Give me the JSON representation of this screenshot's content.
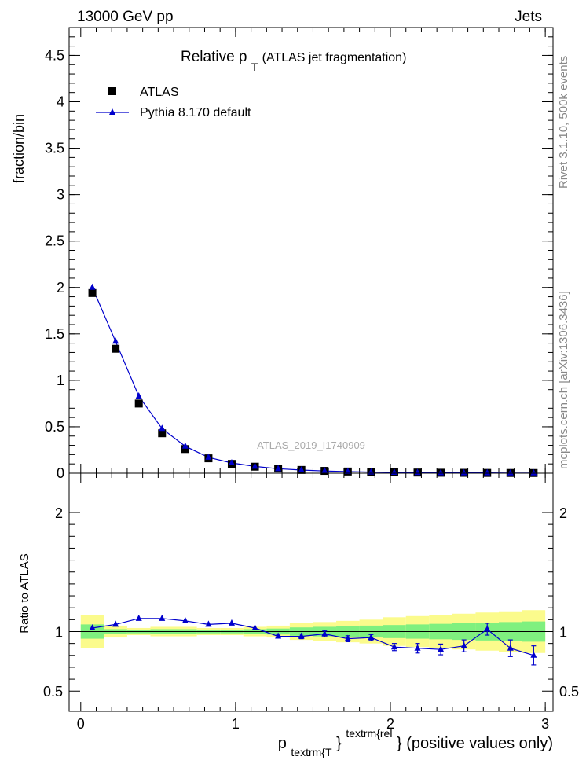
{
  "header": {
    "energy_label": "13000 GeV pp",
    "process_label": "Jets"
  },
  "side_labels": {
    "rivet": "Rivet 3.1.10,  500k events",
    "mcplots": "mcplots.cern.ch [arXiv:1306.3436]"
  },
  "colors": {
    "mc": "#0000cc",
    "green_band": "#7ff07f",
    "yellow_band": "#fbfb8c",
    "data": "#000000",
    "ref_line": "#000000"
  },
  "chart_data": [
    {
      "type": "scatter",
      "panel": "main",
      "title_main": "Relative p",
      "title_sub": "T",
      "title_rest": " (ATLAS jet fragmentation)",
      "analysis_label": "ATLAS_2019_I1740909",
      "ylabel": "fraction/bin",
      "xlim": [
        -0.075,
        3.05
      ],
      "ylim": [
        0,
        4.8
      ],
      "yticks": [
        0,
        0.5,
        1,
        1.5,
        2,
        2.5,
        3,
        3.5,
        4,
        4.5
      ],
      "ytick_labels": [
        "0",
        "0.5",
        "1",
        "1.5",
        "2",
        "2.5",
        "3",
        "3.5",
        "4",
        "4.5"
      ],
      "legend": [
        {
          "label": "ATLAS",
          "marker": "square"
        },
        {
          "label": "Pythia 8.170 default",
          "marker": "triangle-line"
        }
      ],
      "x": [
        0.075,
        0.225,
        0.375,
        0.525,
        0.675,
        0.825,
        0.975,
        1.125,
        1.275,
        1.425,
        1.575,
        1.725,
        1.875,
        2.025,
        2.175,
        2.325,
        2.475,
        2.625,
        2.775,
        2.925
      ],
      "series": [
        {
          "name": "ATLAS",
          "values": [
            1.94,
            1.34,
            0.75,
            0.43,
            0.26,
            0.16,
            0.1,
            0.07,
            0.05,
            0.035,
            0.025,
            0.018,
            0.013,
            0.01,
            0.007,
            0.005,
            0.004,
            0.003,
            0.0025,
            0.002
          ]
        },
        {
          "name": "Pythia 8.170 default",
          "values": [
            2.0,
            1.42,
            0.83,
            0.48,
            0.29,
            0.17,
            0.11,
            0.073,
            0.048,
            0.034,
            0.024,
            0.017,
            0.012,
            0.0085,
            0.006,
            0.0042,
            0.0034,
            0.003,
            0.0021,
            0.0016
          ]
        }
      ]
    },
    {
      "type": "line",
      "panel": "ratio",
      "ylabel": "Ratio to ATLAS",
      "xlabel_main": "p",
      "xlabel_sub": "textrm{T",
      "xlabel_brace": "}",
      "xlabel_sup": "textrm{rel",
      "xlabel_rest": "} (positive values only)",
      "xlim": [
        -0.075,
        3.05
      ],
      "ylim": [
        0.33,
        2.33
      ],
      "xticks": [
        0,
        1,
        2,
        3
      ],
      "xtick_labels": [
        "0",
        "1",
        "2",
        "3"
      ],
      "yticks": [
        0.5,
        1,
        2
      ],
      "ytick_labels": [
        "0.5",
        "1",
        "2"
      ],
      "bins": [
        [
          0,
          0.15
        ],
        [
          0.15,
          0.3
        ],
        [
          0.3,
          0.45
        ],
        [
          0.45,
          0.6
        ],
        [
          0.6,
          0.75
        ],
        [
          0.75,
          0.9
        ],
        [
          0.9,
          1.05
        ],
        [
          1.05,
          1.2
        ],
        [
          1.2,
          1.35
        ],
        [
          1.35,
          1.5
        ],
        [
          1.5,
          1.65
        ],
        [
          1.65,
          1.8
        ],
        [
          1.8,
          1.95
        ],
        [
          1.95,
          2.1
        ],
        [
          2.1,
          2.25
        ],
        [
          2.25,
          2.4
        ],
        [
          2.4,
          2.55
        ],
        [
          2.55,
          2.7
        ],
        [
          2.7,
          2.85
        ],
        [
          2.85,
          3.0
        ]
      ],
      "green_band": [
        0.06,
        0.02,
        0.015,
        0.02,
        0.02,
        0.015,
        0.015,
        0.02,
        0.025,
        0.035,
        0.04,
        0.045,
        0.05,
        0.055,
        0.06,
        0.065,
        0.07,
        0.075,
        0.08,
        0.085
      ],
      "yellow_band": [
        0.14,
        0.05,
        0.03,
        0.04,
        0.04,
        0.03,
        0.03,
        0.04,
        0.05,
        0.07,
        0.08,
        0.09,
        0.1,
        0.12,
        0.13,
        0.14,
        0.15,
        0.16,
        0.17,
        0.18
      ],
      "x": [
        0.075,
        0.225,
        0.375,
        0.525,
        0.675,
        0.825,
        0.975,
        1.125,
        1.275,
        1.425,
        1.575,
        1.725,
        1.875,
        2.025,
        2.175,
        2.325,
        2.475,
        2.625,
        2.775,
        2.925
      ],
      "series": [
        {
          "name": "Pythia 8.170 default",
          "values": [
            1.03,
            1.06,
            1.11,
            1.11,
            1.09,
            1.06,
            1.07,
            1.03,
            0.96,
            0.96,
            0.98,
            0.94,
            0.95,
            0.87,
            0.86,
            0.85,
            0.88,
            1.02,
            0.86,
            0.8
          ]
        }
      ],
      "errors": [
        0.0,
        0.0,
        0.0,
        0.0,
        0.0,
        0.0,
        0.0,
        0.0,
        0.01,
        0.02,
        0.025,
        0.025,
        0.025,
        0.03,
        0.04,
        0.045,
        0.05,
        0.05,
        0.07,
        0.08
      ]
    }
  ]
}
